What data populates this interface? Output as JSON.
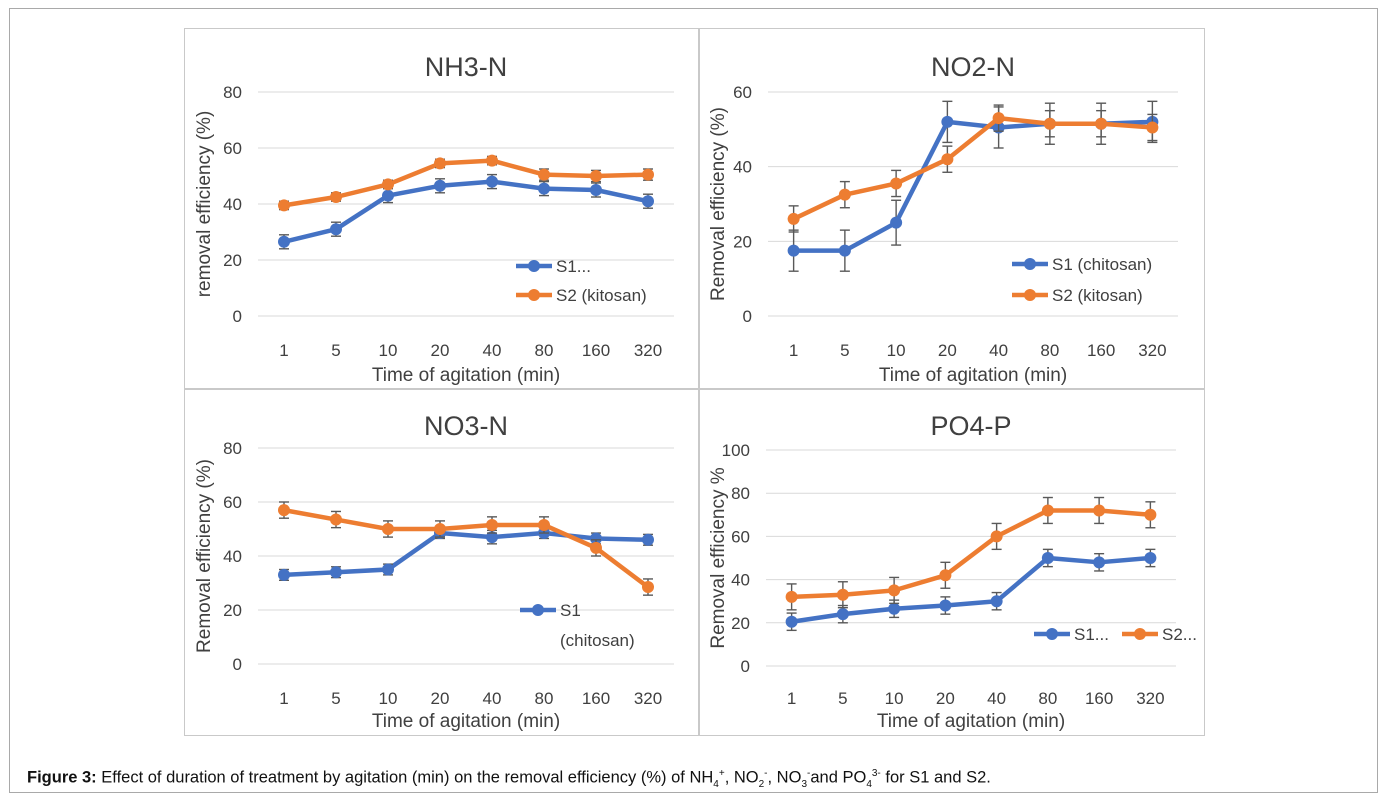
{
  "caption": {
    "label": "Figure 3:",
    "prefix": " Effect of duration of treatment by agitation (min) on the removal efficiency (%) of NH",
    "nh_sub": "4",
    "nh_sup": "+",
    "sep1": ", NO",
    "no2_sub": "2",
    "no2_sup": "-",
    "sep2": ", NO",
    "no3_sub": "3",
    "no3_sup": "-",
    "sep3": "and PO",
    "po_sub": "4",
    "po_sup": "3-",
    "suffix": " for S1 and S2."
  },
  "colors": {
    "s1": "#4472C4",
    "s2": "#ED7D31",
    "grid": "#d9d9d9",
    "error": "#595959",
    "text": "#404040"
  },
  "chart_data": [
    {
      "type": "line",
      "title": "NH3-N",
      "xlabel": "Time of agitation (min)",
      "ylabel": "removal efficiency (%)",
      "categories": [
        "1",
        "5",
        "10",
        "20",
        "40",
        "80",
        "160",
        "320"
      ],
      "ylim": [
        0,
        80
      ],
      "yticks": [
        0,
        20,
        40,
        60,
        80
      ],
      "grid": true,
      "legend": "lower-right",
      "series": [
        {
          "name": "S1...",
          "values": [
            26.5,
            31,
            43,
            46.5,
            48,
            45.5,
            45,
            41
          ],
          "errors": [
            2.5,
            2.5,
            2.5,
            2.5,
            2.5,
            2.5,
            2.5,
            2.5
          ]
        },
        {
          "name": "S2 (kitosan)",
          "values": [
            39.5,
            42.5,
            47,
            54.5,
            55.5,
            50.5,
            50,
            50.5
          ],
          "errors": [
            1.5,
            1.5,
            1.5,
            1.5,
            1.5,
            2,
            2,
            2
          ]
        }
      ]
    },
    {
      "type": "line",
      "title": "NO2-N",
      "xlabel": "Time of agitation (min)",
      "ylabel": "Removal efficiency (%)",
      "categories": [
        "1",
        "5",
        "10",
        "20",
        "40",
        "80",
        "160",
        "320"
      ],
      "ylim": [
        0,
        60
      ],
      "yticks": [
        0,
        20,
        40,
        60
      ],
      "grid": true,
      "legend": "lower-right",
      "series": [
        {
          "name": "S1 (chitosan)",
          "values": [
            17.5,
            17.5,
            25,
            52,
            50.5,
            51.5,
            51.5,
            52
          ],
          "errors": [
            5.5,
            5.5,
            6,
            5.5,
            5.5,
            5.5,
            5.5,
            5.5
          ]
        },
        {
          "name": "S2 (kitosan)",
          "values": [
            26,
            32.5,
            35.5,
            42,
            53,
            51.5,
            51.5,
            50.5
          ],
          "errors": [
            3.5,
            3.5,
            3.5,
            3.5,
            3.5,
            3.5,
            3.5,
            3.5
          ]
        }
      ]
    },
    {
      "type": "line",
      "title": "NO3-N",
      "xlabel": "Time of agitation (min)",
      "ylabel": "Removal efficiency (%)",
      "categories": [
        "1",
        "5",
        "10",
        "20",
        "40",
        "80",
        "160",
        "320"
      ],
      "ylim": [
        0,
        80
      ],
      "yticks": [
        0,
        20,
        40,
        60,
        80
      ],
      "grid": true,
      "legend": "lower-right",
      "series": [
        {
          "name": "S1 (chitosan)",
          "values": [
            33,
            34,
            35,
            48.5,
            47,
            48.5,
            46.5,
            46
          ],
          "errors": [
            2,
            2,
            2,
            2,
            2.5,
            2,
            2,
            2
          ]
        },
        {
          "name": "",
          "values": [
            57,
            53.5,
            50,
            50,
            51.5,
            51.5,
            43,
            28.5
          ],
          "errors": [
            3,
            3,
            3,
            3,
            3,
            3,
            3,
            3
          ]
        }
      ]
    },
    {
      "type": "line",
      "title": "PO4-P",
      "xlabel": "Time of agitation (min)",
      "ylabel": "Removal efficiency %",
      "categories": [
        "1",
        "5",
        "10",
        "20",
        "40",
        "80",
        "160",
        "320"
      ],
      "ylim": [
        0,
        100
      ],
      "yticks": [
        0,
        20,
        40,
        60,
        80,
        100
      ],
      "grid": true,
      "legend": "lower-right",
      "series": [
        {
          "name": "S1...",
          "values": [
            20.5,
            24,
            26.5,
            28,
            30,
            50,
            48,
            50
          ],
          "errors": [
            4,
            4,
            4,
            4,
            4,
            4,
            4,
            4
          ]
        },
        {
          "name": "S2...",
          "values": [
            32,
            33,
            35,
            42,
            60,
            72,
            72,
            70
          ],
          "errors": [
            6,
            6,
            6,
            6,
            6,
            6,
            6,
            6
          ]
        }
      ]
    }
  ]
}
